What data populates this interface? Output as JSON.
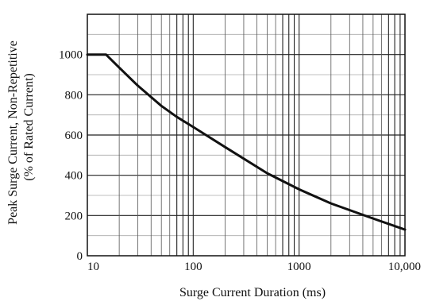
{
  "chart_data": {
    "type": "line",
    "title": "",
    "xlabel": "Surge Current Duration (ms)",
    "ylabel": [
      "Peak Surge Current, Non-Repetitive",
      "(% of Rated Current)"
    ],
    "xscale": "log",
    "xlim": [
      10,
      10000
    ],
    "ylim": [
      0,
      1200
    ],
    "x_ticks": [
      10,
      100,
      1000,
      10000
    ],
    "x_tick_labels": [
      "10",
      "100",
      "1000",
      "10,000"
    ],
    "y_ticks": [
      0,
      200,
      400,
      600,
      800,
      1000
    ],
    "y_tick_labels": [
      "0",
      "200",
      "400",
      "600",
      "800",
      "1000"
    ],
    "grid": true,
    "legend": "none",
    "series": [
      {
        "x": [
          10,
          15,
          20,
          30,
          50,
          70,
          100,
          200,
          500,
          1000,
          2000,
          5000,
          10000
        ],
        "values": [
          1000,
          1000,
          935,
          845,
          745,
          690,
          640,
          540,
          410,
          330,
          260,
          185,
          130
        ]
      }
    ],
    "colors": {
      "line": "#111111",
      "grid": "#333333",
      "background": "#ffffff"
    }
  }
}
